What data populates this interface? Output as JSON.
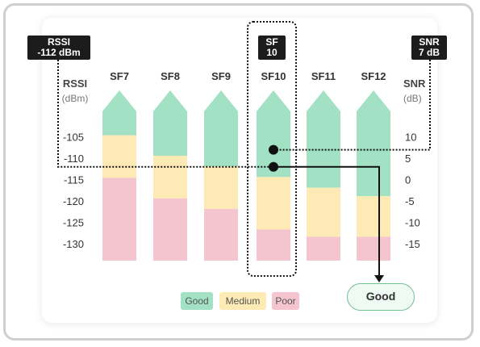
{
  "chart_data": {
    "type": "bar",
    "categories": [
      "SF7",
      "SF8",
      "SF9",
      "SF10",
      "SF11",
      "SF12"
    ],
    "left_axis": {
      "label_line1": "RSSI",
      "label_line2": "(dBm)",
      "ticks": [
        -105,
        -110,
        -115,
        -120,
        -125,
        -130
      ],
      "range": [
        -134,
        -99
      ]
    },
    "right_axis": {
      "label_line1": "SNR",
      "label_line2": "(dB)",
      "ticks": [
        10,
        5,
        0,
        -5,
        -10,
        -15
      ],
      "range": [
        -19,
        16
      ]
    },
    "bars": [
      {
        "category": "SF7",
        "medium_from_rssi": -104.6,
        "poor_from_rssi": -114.6
      },
      {
        "category": "SF8",
        "medium_from_rssi": -109.4,
        "poor_from_rssi": -119.4
      },
      {
        "category": "SF9",
        "medium_from_rssi": -111.9,
        "poor_from_rssi": -121.9
      },
      {
        "category": "SF10",
        "medium_from_rssi": -114.4,
        "poor_from_rssi": -126.7
      },
      {
        "category": "SF11",
        "medium_from_rssi": -116.9,
        "poor_from_rssi": -128.4
      },
      {
        "category": "SF12",
        "medium_from_rssi": -118.9,
        "poor_from_rssi": -128.4
      }
    ],
    "legend": [
      {
        "label": "Good",
        "color": "#a3e1c5"
      },
      {
        "label": "Medium",
        "color": "#fdeab4"
      },
      {
        "label": "Poor",
        "color": "#f4c4cf"
      }
    ],
    "markers": [
      {
        "name": "snr-point",
        "category": "SF10",
        "snr": 7
      },
      {
        "name": "rssi-point",
        "category": "SF10",
        "rssi": -112
      }
    ]
  },
  "callouts": {
    "rssi": {
      "line1": "RSSI",
      "line2": "-112 dBm"
    },
    "snr": {
      "line1": "SNR",
      "line2": "7 dB"
    },
    "sf": {
      "line1": "SF",
      "line2": "10"
    }
  },
  "result": {
    "label": "Good"
  },
  "colors": {
    "good": "#a3e1c5",
    "medium": "#fdeab4",
    "poor": "#f4c4cf",
    "axis_text": "#333333"
  }
}
